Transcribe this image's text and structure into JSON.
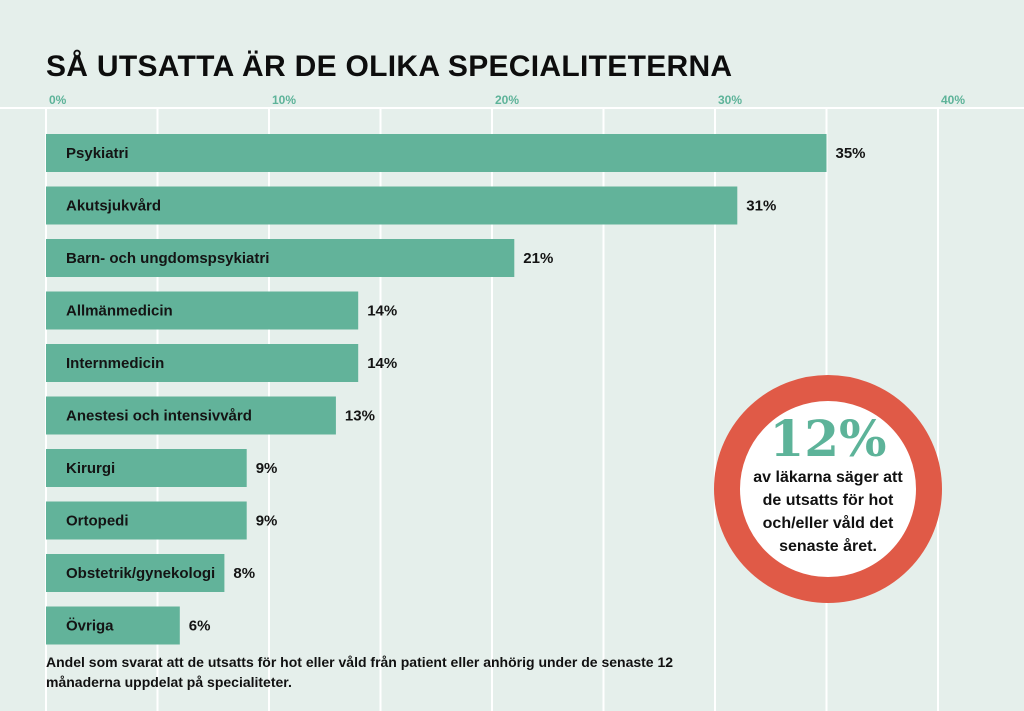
{
  "colors": {
    "background": "#e5efeb",
    "bar": "#62b39a",
    "axis_text": "#5db399",
    "grid": "#ffffff",
    "ring": "#e05a47",
    "big_number": "#5db399"
  },
  "chart_data": {
    "type": "bar",
    "orientation": "horizontal",
    "title": "SÅ UTSATTA ÄR DE OLIKA SPECIALITETERNA",
    "xlim": [
      0,
      40
    ],
    "x_ticks": [
      "0%",
      "10%",
      "20%",
      "30%",
      "40%"
    ],
    "x_tick_values": [
      0,
      10,
      20,
      30,
      40
    ],
    "x_axis_position": "top",
    "grid": true,
    "categories": [
      "Psykiatri",
      "Akutsjukvård",
      "Barn- och ungdomspsykiatri",
      "Allmänmedicin",
      "Internmedicin",
      "Anestesi och intensivvård",
      "Kirurgi",
      "Ortopedi",
      "Obstetrik/gynekologi",
      "Övriga"
    ],
    "values": [
      35,
      31,
      21,
      14,
      14,
      13,
      9,
      9,
      8,
      6
    ],
    "value_labels": [
      "35%",
      "31%",
      "21%",
      "14%",
      "14%",
      "13%",
      "9%",
      "9%",
      "8%",
      "6%"
    ]
  },
  "callout": {
    "big": "12%",
    "text": "av läkarna säger att de utsatts för hot och/eller våld det senaste året."
  },
  "footnote": "Andel som svarat att de utsatts för hot eller våld från patient eller anhörig under de senaste 12 månaderna uppdelat på specialiteter."
}
